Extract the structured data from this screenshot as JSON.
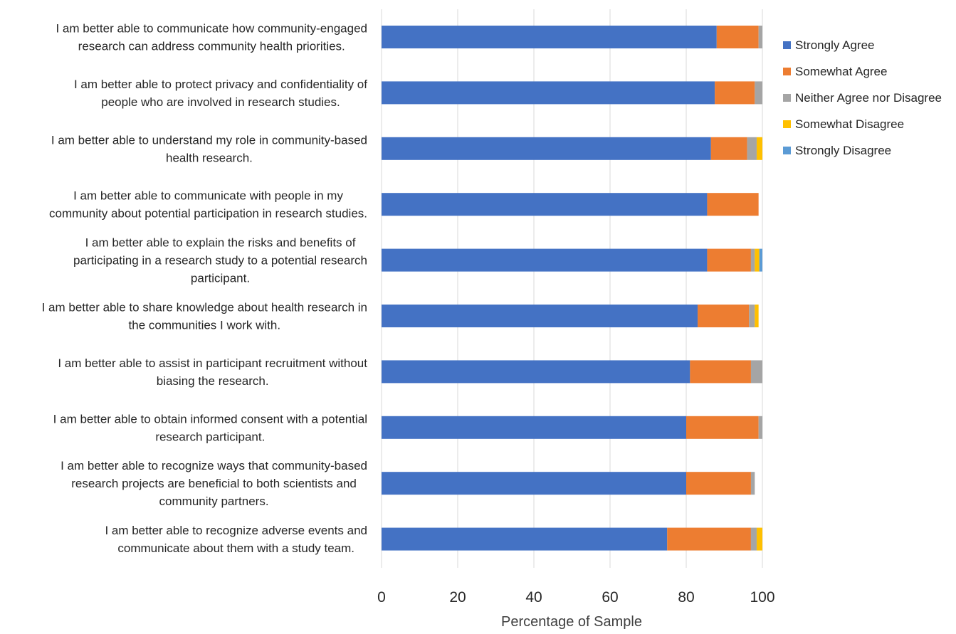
{
  "chart_data": {
    "type": "bar",
    "orientation": "horizontal",
    "stacked": true,
    "title": "",
    "xlabel": "Percentage of Sample",
    "ylabel": "",
    "xlim": [
      0,
      100
    ],
    "x_ticks": [
      0,
      20,
      40,
      60,
      80,
      100
    ],
    "grid": "vertical",
    "legend_position": "top-right",
    "categories": [
      [
        "I am better able to communicate how community-engaged",
        "research can address community health priorities."
      ],
      [
        "I am better able to protect privacy and confidentiality of",
        "people who are involved in research studies."
      ],
      [
        "I am better able to understand my role in community-based",
        "health research."
      ],
      [
        "I am better able to communicate with people in my",
        "community about potential participation in research studies."
      ],
      [
        "I am better able to explain the risks and benefits of",
        "participating in a research study to a potential research",
        "participant."
      ],
      [
        "I am better able to share knowledge about health research in",
        "the communities I work with."
      ],
      [
        "I am better able to assist in participant recruitment without",
        "biasing the research."
      ],
      [
        "I am better able to obtain informed consent with a potential",
        "research participant."
      ],
      [
        "I am better able to  recognize ways that community-based",
        "research projects are beneficial to both scientists and",
        "community partners."
      ],
      [
        "I am better able to recognize adverse events and",
        "communicate about them with a study team."
      ]
    ],
    "series": [
      {
        "name": "Strongly Agree",
        "color": "#4472C4",
        "values": [
          88,
          87.5,
          86.5,
          85.5,
          85.5,
          83,
          81,
          80,
          80,
          75
        ]
      },
      {
        "name": "Somewhat Agree",
        "color": "#ED7D31",
        "values": [
          11,
          10.5,
          9.5,
          13.5,
          11.5,
          13.5,
          16,
          19,
          17,
          22
        ]
      },
      {
        "name": "Neither Agree nor Disagree",
        "color": "#A5A5A5",
        "values": [
          1,
          2,
          2.5,
          0,
          1,
          1.5,
          3,
          1,
          1,
          1.5
        ]
      },
      {
        "name": "Somewhat Disagree",
        "color": "#FFC000",
        "values": [
          0,
          0,
          1.5,
          0,
          1.2,
          1,
          0,
          0,
          0,
          1.5
        ]
      },
      {
        "name": "Strongly Disagree",
        "color": "#5B9BD5",
        "values": [
          0,
          0,
          0,
          0,
          0.8,
          0,
          0,
          0,
          0,
          0
        ]
      }
    ]
  }
}
